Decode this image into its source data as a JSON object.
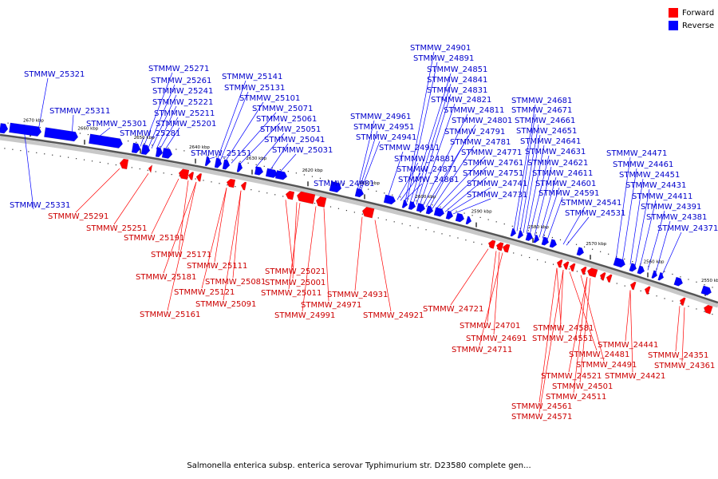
{
  "legend": {
    "forward_label": "Forward",
    "reverse_label": "Reverse",
    "forward_color": "#ff0000",
    "reverse_color": "#0000ff"
  },
  "caption": "Salmonella enterica subsp. enterica serovar Typhimurium str. D23580 complete gen...",
  "scale_labels": [
    "2670 kbp",
    "2660 kbp",
    "2650 kbp",
    "2640 kbp",
    "2630 kbp",
    "2620 kbp",
    "2610 kbp",
    "2600 kbp",
    "2590 kbp",
    "2580 kbp",
    "2570 kbp",
    "2560 kbp",
    "2550 kbp"
  ],
  "reverse_labels": [
    "STMMW_25321",
    "STMMW_25331",
    "STMMW_25311",
    "STMMW_25301",
    "STMMW_25281",
    "STMMW_25271",
    "STMMW_25261",
    "STMMW_25241",
    "STMMW_25221",
    "STMMW_25211",
    "STMMW_25201",
    "STMMW_25151",
    "STMMW_25141",
    "STMMW_25131",
    "STMMW_25101",
    "STMMW_25071",
    "STMMW_25061",
    "STMMW_25051",
    "STMMW_25041",
    "STMMW_25031",
    "STMMW_24981",
    "STMMW_24961",
    "STMMW_24951",
    "STMMW_24941",
    "STMMW_24911",
    "STMMW_24901",
    "STMMW_24891",
    "STMMW_24851",
    "STMMW_24841",
    "STMMW_24831",
    "STMMW_24821",
    "STMMW_24811",
    "STMMW_24801",
    "STMMW_24791",
    "STMMW_24781",
    "STMMW_24771",
    "STMMW_24761",
    "STMMW_24751",
    "STMMW_24741",
    "STMMW_24731",
    "STMMW_24881",
    "STMMW_24871",
    "STMMW_24861",
    "STMMW_24681",
    "STMMW_24671",
    "STMMW_24661",
    "STMMW_24651",
    "STMMW_24641",
    "STMMW_24631",
    "STMMW_24621",
    "STMMW_24611",
    "STMMW_24601",
    "STMMW_24591",
    "STMMW_24541",
    "STMMW_24531",
    "STMMW_24471",
    "STMMW_24461",
    "STMMW_24451",
    "STMMW_24431",
    "STMMW_24411",
    "STMMW_24391",
    "STMMW_24381",
    "STMMW_24371"
  ],
  "forward_labels": [
    "STMMW_25291",
    "STMMW_25251",
    "STMMW_25191",
    "STMMW_25171",
    "STMMW_25181",
    "STMMW_25111",
    "STMMW_25081",
    "STMMW_25121",
    "STMMW_25091",
    "STMMW_25161",
    "STMMW_25021",
    "STMMW_25001",
    "STMMW_25011",
    "STMMW_24991",
    "STMMW_24971",
    "STMMW_24931",
    "STMMW_24921",
    "STMMW_24721",
    "STMMW_24701",
    "STMMW_24691",
    "STMMW_24711",
    "STMMW_24581",
    "STMMW_24551",
    "STMMW_24481",
    "STMMW_24491",
    "STMMW_24441",
    "STMMW_24521",
    "STMMW_24501",
    "STMMW_24511",
    "STMMW_24561",
    "STMMW_24571",
    "STMMW_24421",
    "STMMW_24351",
    "STMMW_24361"
  ]
}
